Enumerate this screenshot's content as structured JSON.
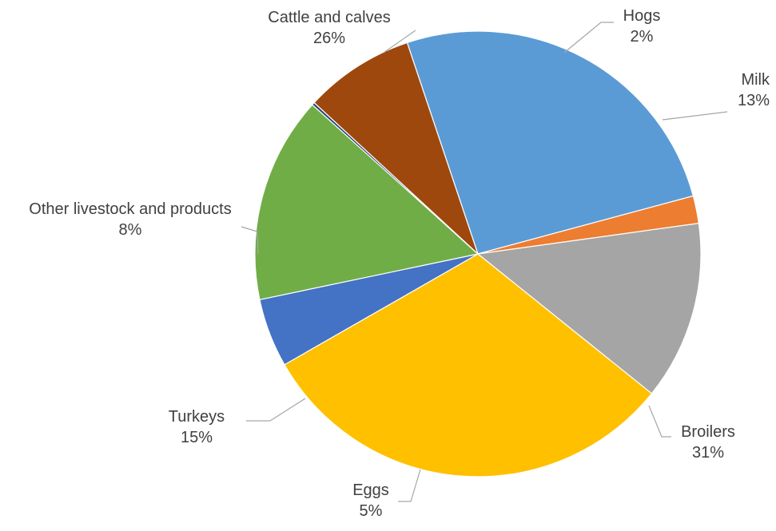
{
  "chart_data": {
    "type": "pie",
    "title": "",
    "series": [
      {
        "values": [
          26,
          2,
          13,
          31,
          5,
          15,
          0.2,
          8
        ]
      }
    ],
    "slices": [
      {
        "name": "Cattle and calves",
        "percent_label": "26%",
        "value": 26,
        "color": "#5B9BD5",
        "label_lines": [
          "Cattle and calves",
          "26%"
        ]
      },
      {
        "name": "Hogs",
        "percent_label": "2%",
        "value": 2,
        "color": "#ED7D31",
        "label_lines": [
          "Hogs",
          "2%"
        ]
      },
      {
        "name": "Milk",
        "percent_label": "13%",
        "value": 13,
        "color": "#A5A5A5",
        "label_lines": [
          "Milk",
          "13%"
        ]
      },
      {
        "name": "Broilers",
        "percent_label": "31%",
        "value": 31,
        "color": "#FFC000",
        "label_lines": [
          "Broilers",
          "31%"
        ]
      },
      {
        "name": "Eggs",
        "percent_label": "5%",
        "value": 5,
        "color": "#4472C4",
        "label_lines": [
          "Eggs",
          "5%"
        ]
      },
      {
        "name": "Turkeys",
        "percent_label": "15%",
        "value": 15,
        "color": "#70AD47",
        "label_lines": [
          "Turkeys",
          "15%"
        ]
      },
      {
        "name": "",
        "percent_label": "",
        "value": 0.2,
        "color": "#264478",
        "label_lines": []
      },
      {
        "name": "Other livestock and products",
        "percent_label": "8%",
        "value": 8,
        "color": "#9E480E",
        "label_lines": [
          "Other livestock and products",
          "8%"
        ]
      }
    ],
    "label_text_color": "#404040",
    "leader_line_color": "#A6A6A6",
    "legend": "none"
  }
}
